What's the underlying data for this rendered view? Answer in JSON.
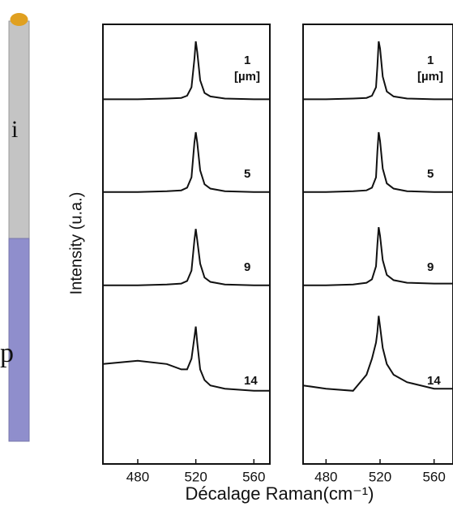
{
  "nanowire": {
    "label_i": "i",
    "label_p": "p"
  },
  "chart_data": [
    {
      "type": "line",
      "ylabel": "Intensity (u.a.)",
      "xlabel": "Décalage Raman(cm⁻¹)",
      "unit": "[µm]",
      "xlim": [
        456,
        571
      ],
      "xticks": [
        480,
        520,
        560
      ],
      "ylim": [
        0,
        1
      ],
      "x": [
        456,
        480,
        500,
        510,
        514,
        517,
        519,
        520,
        521,
        523,
        526,
        530,
        540,
        560,
        571
      ],
      "series": [
        {
          "name": "1",
          "color": "#111",
          "values": [
            0.03,
            0.03,
            0.04,
            0.05,
            0.08,
            0.2,
            0.6,
            0.85,
            0.7,
            0.3,
            0.12,
            0.07,
            0.04,
            0.03,
            0.03
          ]
        },
        {
          "name": "5",
          "color": "#111",
          "values": [
            0.03,
            0.03,
            0.04,
            0.05,
            0.08,
            0.2,
            0.6,
            0.72,
            0.6,
            0.28,
            0.12,
            0.07,
            0.04,
            0.03,
            0.03
          ]
        },
        {
          "name": "9",
          "color": "#111",
          "values": [
            0.03,
            0.03,
            0.04,
            0.05,
            0.08,
            0.2,
            0.55,
            0.68,
            0.55,
            0.28,
            0.12,
            0.07,
            0.04,
            0.03,
            0.03
          ]
        },
        {
          "name": "14",
          "color": "#111",
          "values": [
            0.35,
            0.38,
            0.35,
            0.3,
            0.3,
            0.4,
            0.6,
            0.7,
            0.55,
            0.3,
            0.2,
            0.15,
            0.12,
            0.1,
            0.1
          ]
        }
      ]
    },
    {
      "type": "line",
      "unit": "[µm]",
      "xlim": [
        463,
        574
      ],
      "xticks": [
        480,
        520,
        560
      ],
      "ylim": [
        0,
        1
      ],
      "x": [
        463,
        480,
        500,
        510,
        514,
        517,
        518,
        519,
        520,
        522,
        525,
        530,
        540,
        560,
        574
      ],
      "series": [
        {
          "name": "1",
          "color": "#111",
          "values": [
            0.03,
            0.03,
            0.04,
            0.05,
            0.08,
            0.2,
            0.5,
            0.85,
            0.75,
            0.35,
            0.14,
            0.07,
            0.04,
            0.03,
            0.03
          ]
        },
        {
          "name": "5",
          "color": "#111",
          "values": [
            0.03,
            0.03,
            0.04,
            0.05,
            0.08,
            0.2,
            0.5,
            0.72,
            0.62,
            0.3,
            0.13,
            0.07,
            0.04,
            0.03,
            0.03
          ]
        },
        {
          "name": "9",
          "color": "#111",
          "values": [
            0.03,
            0.03,
            0.04,
            0.06,
            0.1,
            0.25,
            0.5,
            0.7,
            0.6,
            0.32,
            0.15,
            0.09,
            0.06,
            0.05,
            0.05
          ]
        },
        {
          "name": "14",
          "color": "#111",
          "values": [
            0.15,
            0.12,
            0.1,
            0.25,
            0.4,
            0.55,
            0.65,
            0.8,
            0.7,
            0.5,
            0.35,
            0.25,
            0.18,
            0.12,
            0.12
          ]
        }
      ]
    }
  ]
}
